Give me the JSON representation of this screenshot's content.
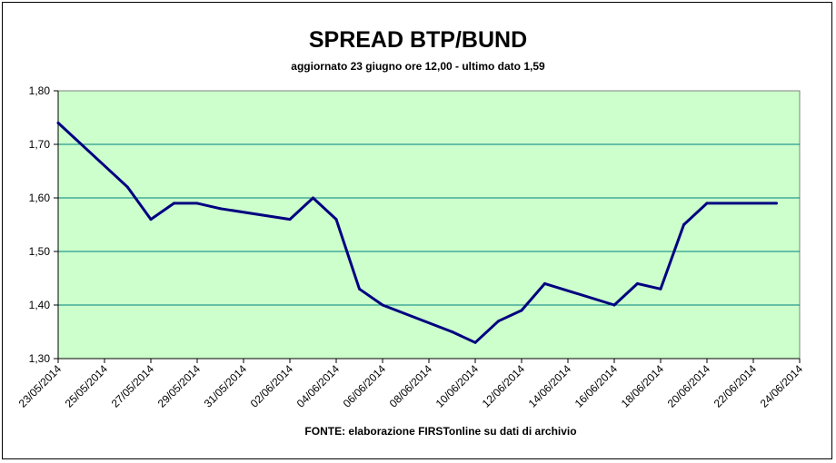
{
  "chart_data": {
    "type": "line",
    "title": "SPREAD BTP/BUND",
    "subtitle": "aggiornato 23 giugno ore 12,00 - ultimo dato 1,59",
    "source": "FONTE:  elaborazione FIRSTonline su dati di archivio",
    "xlabel": "",
    "ylabel": "",
    "ylim": [
      1.3,
      1.8
    ],
    "yticks": [
      1.3,
      1.4,
      1.5,
      1.6,
      1.7,
      1.8
    ],
    "ytick_labels": [
      "1,30",
      "1,40",
      "1,50",
      "1,60",
      "1,70",
      "1,80"
    ],
    "xlim": [
      "2014-05-23",
      "2014-06-24"
    ],
    "xtick_labels": [
      "23/05/2014",
      "25/05/2014",
      "27/05/2014",
      "29/05/2014",
      "31/05/2014",
      "02/06/2014",
      "04/06/2014",
      "06/06/2014",
      "08/06/2014",
      "10/06/2014",
      "12/06/2014",
      "14/06/2014",
      "16/06/2014",
      "18/06/2014",
      "20/06/2014",
      "22/06/2014",
      "24/06/2014"
    ],
    "grid": "horizontal",
    "legend": "none",
    "plot_background": "#ccffcc",
    "line_color": "#000080",
    "gridline_color": "#008080",
    "series": [
      {
        "x": [
          "2014-05-23",
          "2014-05-26",
          "2014-05-27",
          "2014-05-28",
          "2014-05-29",
          "2014-05-30",
          "2014-06-02",
          "2014-06-03",
          "2014-06-04",
          "2014-06-05",
          "2014-06-06",
          "2014-06-09",
          "2014-06-10",
          "2014-06-11",
          "2014-06-12",
          "2014-06-13",
          "2014-06-16",
          "2014-06-17",
          "2014-06-18",
          "2014-06-19",
          "2014-06-20",
          "2014-06-23"
        ],
        "values": [
          1.74,
          1.62,
          1.56,
          1.59,
          1.59,
          1.58,
          1.56,
          1.6,
          1.56,
          1.43,
          1.4,
          1.35,
          1.33,
          1.37,
          1.39,
          1.44,
          1.4,
          1.44,
          1.43,
          1.55,
          1.59,
          1.59
        ]
      }
    ]
  }
}
